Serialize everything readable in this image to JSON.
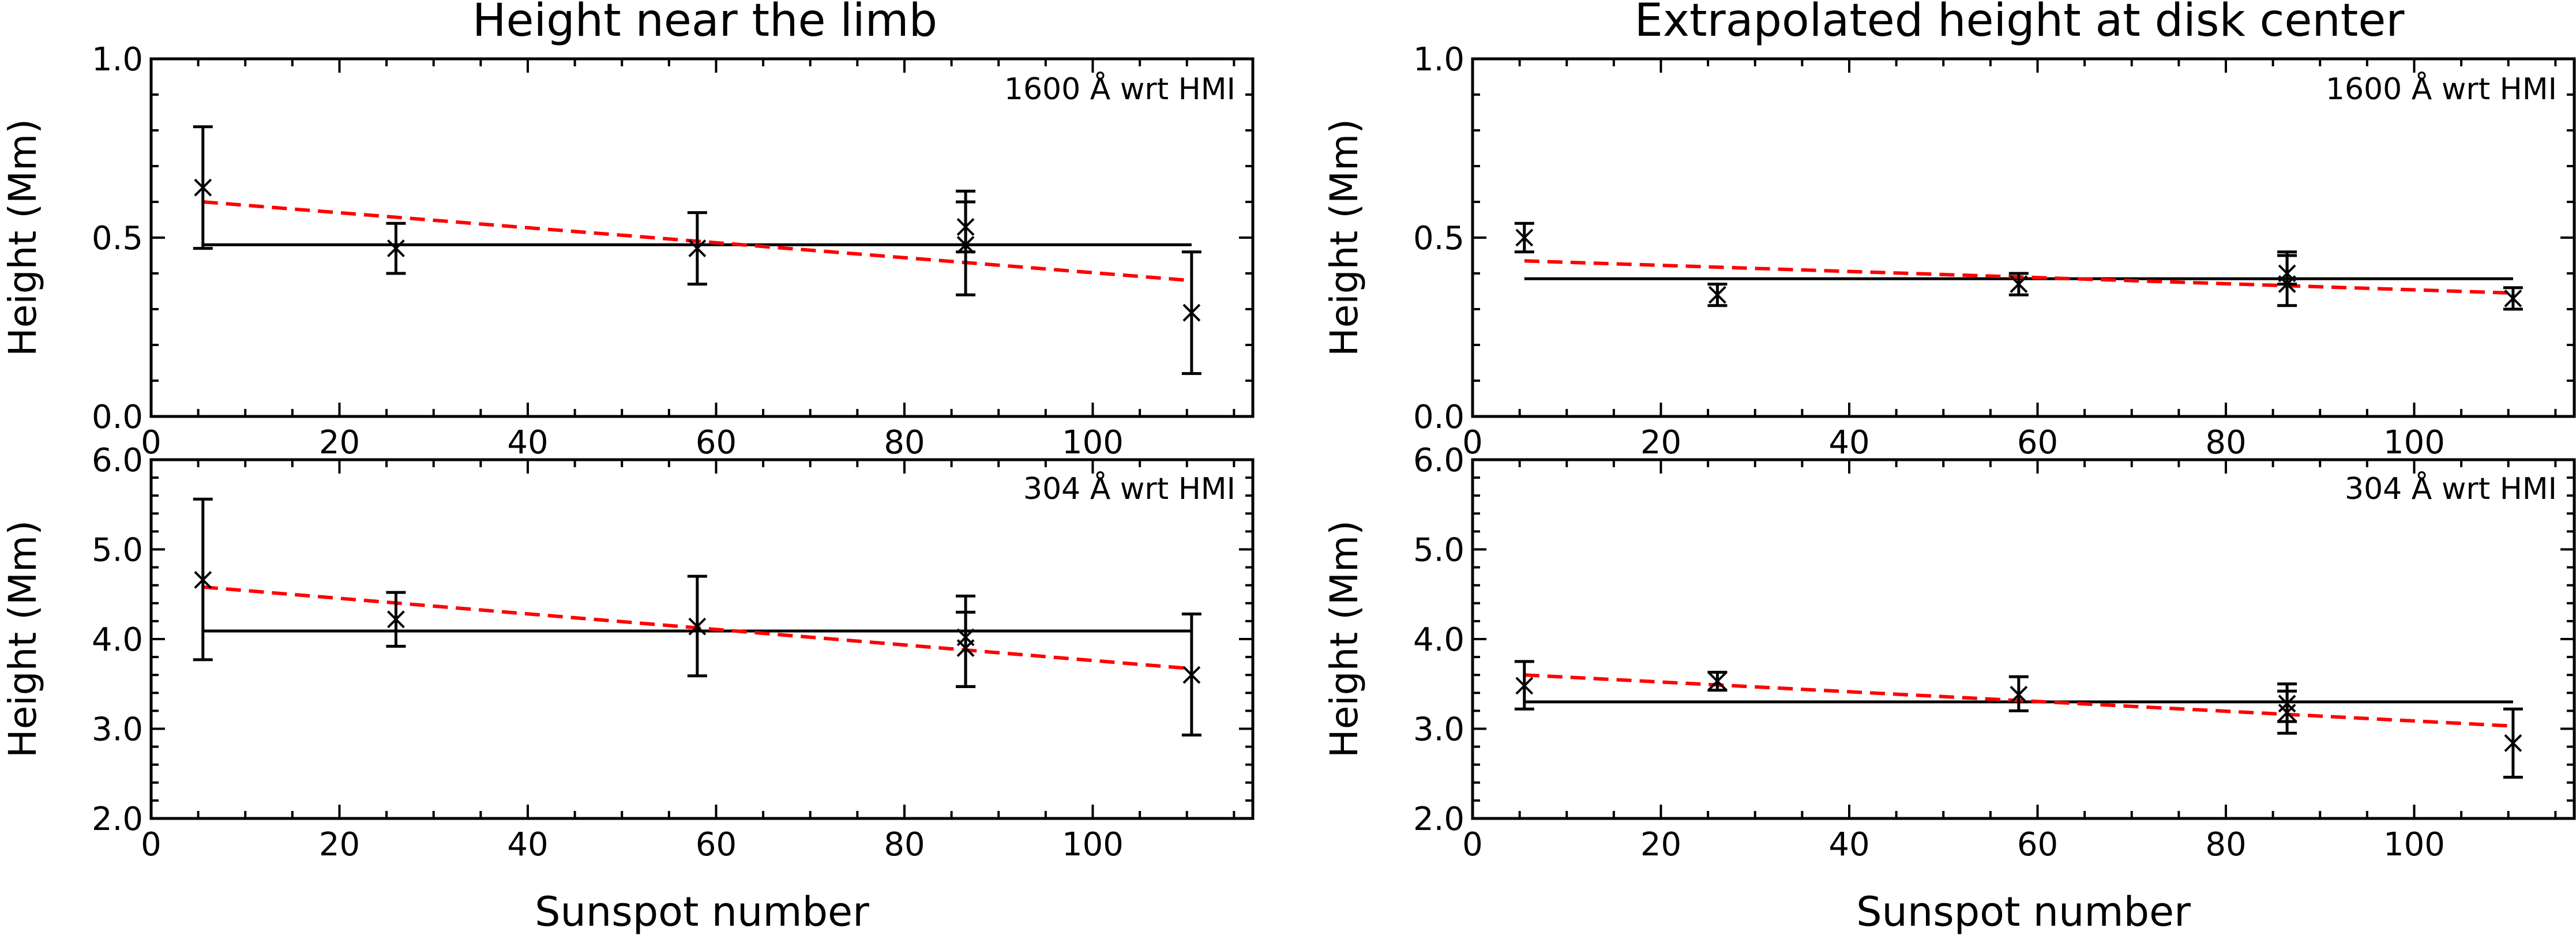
{
  "figure_titles": {
    "left": "Height near the limb",
    "right": "Extrapolated height at disk center"
  },
  "colors": {
    "axes": "#000000",
    "data": "#000000",
    "mean_line": "#000000",
    "fit_line": "#ff0000"
  },
  "chart_data": [
    {
      "type": "scatter",
      "column": "left",
      "row": "top",
      "title": "Height near the limb",
      "annotation": "1600 Å wrt HMI",
      "xlabel": "",
      "ylabel": "Height (Mm)",
      "xlim": [
        0,
        117
      ],
      "ylim": [
        0.0,
        1.0
      ],
      "xticks": [
        "0",
        "20",
        "40",
        "60",
        "80",
        "100"
      ],
      "yticks": [
        "0.0",
        "0.5",
        "1.0"
      ],
      "x": [
        5.5,
        26,
        58,
        86.5,
        86.5,
        110.5
      ],
      "y": [
        0.64,
        0.47,
        0.47,
        0.53,
        0.48,
        0.29
      ],
      "yerr_low": [
        0.47,
        0.4,
        0.37,
        0.46,
        0.34,
        0.12
      ],
      "yerr_high": [
        0.81,
        0.54,
        0.57,
        0.63,
        0.6,
        0.46
      ],
      "mean_line": {
        "x": [
          5.5,
          110.5
        ],
        "y": 0.48
      },
      "fit_line": {
        "x": [
          5.5,
          110.5
        ],
        "y": [
          0.6,
          0.38
        ],
        "style": "dashed"
      }
    },
    {
      "type": "scatter",
      "column": "right",
      "row": "top",
      "title": "Extrapolated height at disk center",
      "annotation": "1600 Å wrt HMI",
      "xlabel": "",
      "ylabel": "Height (Mm)",
      "xlim": [
        0,
        117
      ],
      "ylim": [
        0.0,
        1.0
      ],
      "xticks": [
        "0",
        "20",
        "40",
        "60",
        "80",
        "100"
      ],
      "yticks": [
        "0.0",
        "0.5",
        "1.0"
      ],
      "x": [
        5.5,
        26,
        58,
        86.5,
        86.5,
        110.5
      ],
      "y": [
        0.5,
        0.34,
        0.37,
        0.4,
        0.37,
        0.33
      ],
      "yerr_low": [
        0.46,
        0.31,
        0.34,
        0.37,
        0.31,
        0.3
      ],
      "yerr_high": [
        0.54,
        0.37,
        0.4,
        0.46,
        0.45,
        0.36
      ],
      "mean_line": {
        "x": [
          5.5,
          110.5
        ],
        "y": 0.385
      },
      "fit_line": {
        "x": [
          5.5,
          110.5
        ],
        "y": [
          0.435,
          0.345
        ],
        "style": "dashed"
      }
    },
    {
      "type": "scatter",
      "column": "left",
      "row": "bottom",
      "title": "",
      "annotation": "304 Å wrt HMI",
      "xlabel": "Sunspot number",
      "ylabel": "Height (Mm)",
      "xlim": [
        0,
        117
      ],
      "ylim": [
        2.0,
        6.0
      ],
      "xticks": [
        "0",
        "20",
        "40",
        "60",
        "80",
        "100"
      ],
      "yticks": [
        "2.0",
        "3.0",
        "4.0",
        "5.0",
        "6.0"
      ],
      "x": [
        5.5,
        26,
        58,
        86.5,
        86.5,
        110.5
      ],
      "y": [
        4.66,
        4.22,
        4.14,
        4.02,
        3.9,
        3.6
      ],
      "yerr_low": [
        3.77,
        3.92,
        3.59,
        3.47,
        3.47,
        2.93
      ],
      "yerr_high": [
        5.56,
        4.52,
        4.7,
        4.48,
        4.3,
        4.28
      ],
      "mean_line": {
        "x": [
          5.5,
          110.5
        ],
        "y": 4.09
      },
      "fit_line": {
        "x": [
          5.5,
          110.5
        ],
        "y": [
          4.58,
          3.67
        ],
        "style": "dashed"
      }
    },
    {
      "type": "scatter",
      "column": "right",
      "row": "bottom",
      "title": "",
      "annotation": "304 Å wrt HMI",
      "xlabel": "Sunspot number",
      "ylabel": "Height (Mm)",
      "xlim": [
        0,
        117
      ],
      "ylim": [
        2.0,
        6.0
      ],
      "xticks": [
        "0",
        "20",
        "40",
        "60",
        "80",
        "100"
      ],
      "yticks": [
        "2.0",
        "3.0",
        "4.0",
        "5.0",
        "6.0"
      ],
      "x": [
        5.5,
        26,
        58,
        86.5,
        86.5,
        110.5
      ],
      "y": [
        3.48,
        3.53,
        3.38,
        3.28,
        3.18,
        2.84
      ],
      "yerr_low": [
        3.22,
        3.43,
        3.2,
        3.08,
        2.95,
        2.46
      ],
      "yerr_high": [
        3.75,
        3.63,
        3.58,
        3.5,
        3.42,
        3.22
      ],
      "mean_line": {
        "x": [
          5.5,
          110.5
        ],
        "y": 3.3
      },
      "fit_line": {
        "x": [
          5.5,
          110.5
        ],
        "y": [
          3.6,
          3.03
        ],
        "style": "dashed"
      }
    }
  ]
}
